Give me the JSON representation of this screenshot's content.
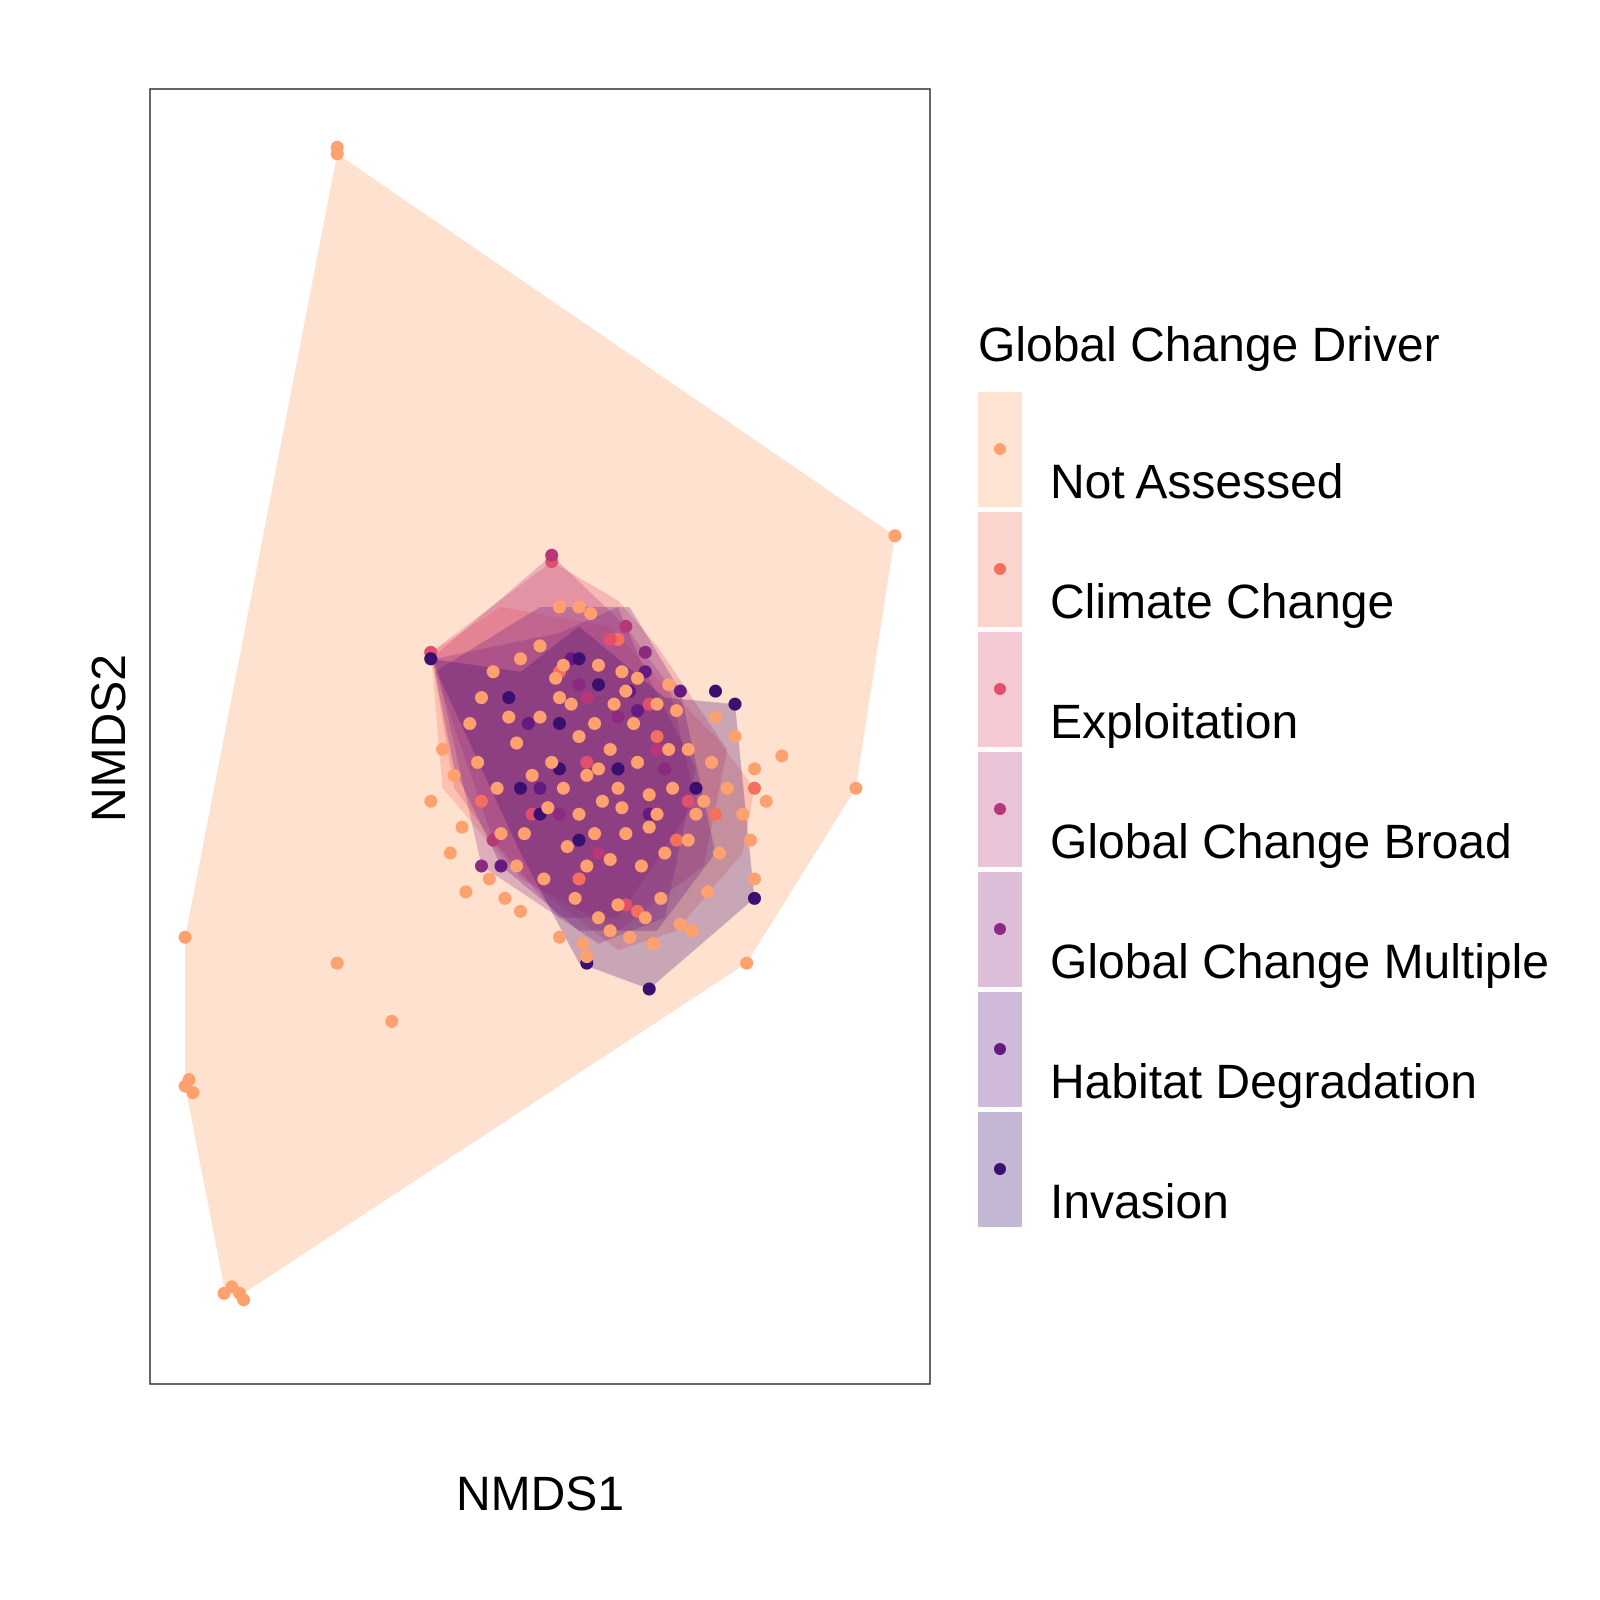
{
  "chart_data": {
    "type": "scatter",
    "title": "",
    "xlabel": "NMDS1",
    "ylabel": "NMDS2",
    "xlim": [
      -1.0,
      1.0
    ],
    "ylim": [
      -1.0,
      1.0
    ],
    "grid": false,
    "legend": {
      "title": "Global Change Driver",
      "position": "right"
    },
    "series": [
      {
        "name": "Not Assessed",
        "color": "#FEA16E",
        "hull": [
          [
            -0.52,
            0.9
          ],
          [
            0.91,
            0.31
          ],
          [
            0.81,
            -0.08
          ],
          [
            0.53,
            -0.35
          ],
          [
            -0.76,
            -0.86
          ],
          [
            -0.81,
            -0.85
          ],
          [
            -0.91,
            -0.54
          ],
          [
            -0.91,
            -0.31
          ]
        ],
        "points": [
          [
            -0.52,
            0.9
          ],
          [
            -0.52,
            0.91
          ],
          [
            0.91,
            0.31
          ],
          [
            0.81,
            -0.08
          ],
          [
            0.53,
            -0.35
          ],
          [
            -0.91,
            -0.31
          ],
          [
            -0.9,
            -0.53
          ],
          [
            -0.91,
            -0.54
          ],
          [
            -0.89,
            -0.55
          ],
          [
            -0.79,
            -0.85
          ],
          [
            -0.81,
            -0.86
          ],
          [
            -0.77,
            -0.86
          ],
          [
            -0.76,
            -0.87
          ],
          [
            -0.52,
            -0.35
          ],
          [
            -0.38,
            -0.44
          ],
          [
            0.1,
            0.2
          ],
          [
            0.13,
            0.19
          ],
          [
            0.05,
            0.2
          ],
          [
            0.15,
            0.11
          ],
          [
            0.25,
            0.09
          ],
          [
            0.22,
            0.07
          ],
          [
            0.3,
            0.05
          ],
          [
            0.33,
            -0.02
          ],
          [
            0.4,
            -0.12
          ],
          [
            0.48,
            -0.08
          ],
          [
            0.52,
            -0.12
          ],
          [
            0.54,
            -0.16
          ],
          [
            0.55,
            -0.22
          ],
          [
            0.58,
            -0.1
          ],
          [
            0.55,
            -0.05
          ],
          [
            0.62,
            -0.03
          ],
          [
            0.5,
            0.0
          ],
          [
            0.45,
            0.03
          ],
          [
            0.35,
            0.04
          ],
          [
            0.32,
            -0.18
          ],
          [
            0.18,
            -0.3
          ],
          [
            0.2,
            -0.26
          ],
          [
            0.12,
            -0.34
          ],
          [
            0.05,
            -0.31
          ],
          [
            -0.05,
            -0.27
          ],
          [
            -0.13,
            -0.22
          ],
          [
            -0.1,
            -0.15
          ],
          [
            -0.2,
            -0.14
          ],
          [
            -0.22,
            -0.06
          ],
          [
            -0.25,
            -0.02
          ],
          [
            -0.18,
            0.02
          ],
          [
            -0.15,
            0.06
          ],
          [
            -0.05,
            0.12
          ],
          [
            0.0,
            0.14
          ],
          [
            0.05,
            0.06
          ],
          [
            0.1,
            0.0
          ],
          [
            0.15,
            -0.05
          ],
          [
            0.2,
            -0.08
          ],
          [
            0.25,
            -0.04
          ],
          [
            0.28,
            -0.09
          ],
          [
            0.3,
            -0.12
          ],
          [
            0.22,
            -0.15
          ],
          [
            0.18,
            -0.19
          ],
          [
            0.12,
            -0.2
          ],
          [
            0.07,
            -0.17
          ],
          [
            0.02,
            -0.11
          ],
          [
            -0.02,
            -0.06
          ],
          [
            -0.06,
            -0.01
          ],
          [
            0.0,
            0.03
          ],
          [
            0.08,
            0.05
          ],
          [
            0.14,
            0.02
          ],
          [
            0.16,
            -0.1
          ],
          [
            0.1,
            -0.12
          ],
          [
            0.06,
            -0.08
          ],
          [
            0.12,
            -0.06
          ],
          [
            0.18,
            -0.02
          ],
          [
            0.24,
            0.02
          ],
          [
            0.28,
            -0.14
          ],
          [
            0.34,
            -0.08
          ],
          [
            0.38,
            -0.02
          ],
          [
            0.42,
            -0.1
          ],
          [
            0.38,
            -0.16
          ],
          [
            0.31,
            -0.25
          ],
          [
            0.27,
            -0.28
          ],
          [
            0.23,
            -0.31
          ],
          [
            0.15,
            -0.28
          ],
          [
            0.01,
            -0.22
          ],
          [
            -0.06,
            -0.2
          ],
          [
            -0.11,
            -0.08
          ],
          [
            -0.28,
            -0.1
          ],
          [
            -0.23,
            -0.18
          ],
          [
            -0.12,
            0.1
          ],
          [
            0.04,
            0.09
          ],
          [
            0.19,
            0.05
          ],
          [
            -0.04,
            -0.15
          ],
          [
            0.09,
            -0.25
          ],
          [
            0.36,
            -0.29
          ],
          [
            0.44,
            -0.04
          ],
          [
            0.46,
            -0.18
          ],
          [
            0.43,
            -0.24
          ],
          [
            0.14,
            -0.15
          ],
          [
            0.21,
            -0.11
          ],
          [
            0.26,
            -0.2
          ],
          [
            0.03,
            -0.04
          ],
          [
            -0.08,
            0.03
          ],
          [
            -0.16,
            -0.04
          ],
          [
            -0.19,
            -0.24
          ],
          [
            -0.09,
            -0.25
          ],
          [
            0.21,
            0.1
          ],
          [
            0.33,
            0.08
          ],
          [
            0.06,
            0.11
          ],
          [
            0.11,
            -0.32
          ],
          [
            0.29,
            -0.32
          ],
          [
            0.39,
            -0.3
          ]
        ]
      },
      {
        "name": "Climate Change",
        "color": "#F46F5E",
        "hull": [
          [
            -0.28,
            0.13
          ],
          [
            -0.1,
            0.2
          ],
          [
            0.18,
            0.17
          ],
          [
            0.3,
            0.09
          ],
          [
            0.45,
            0.0
          ],
          [
            0.55,
            -0.08
          ],
          [
            0.52,
            -0.18
          ],
          [
            0.35,
            -0.3
          ],
          [
            0.2,
            -0.33
          ],
          [
            -0.08,
            -0.2
          ],
          [
            -0.25,
            -0.08
          ]
        ],
        "points": [
          [
            -0.28,
            0.13
          ],
          [
            0.55,
            -0.08
          ],
          [
            0.2,
            0.15
          ],
          [
            0.05,
            0.1
          ],
          [
            0.3,
            0.0
          ],
          [
            0.35,
            -0.16
          ],
          [
            0.1,
            -0.22
          ],
          [
            -0.15,
            -0.1
          ],
          [
            0.25,
            -0.27
          ],
          [
            0.45,
            -0.12
          ]
        ]
      },
      {
        "name": "Exploitation",
        "color": "#E04F6B",
        "hull": [
          [
            -0.28,
            0.13
          ],
          [
            0.03,
            0.27
          ],
          [
            0.2,
            0.21
          ],
          [
            0.3,
            0.14
          ],
          [
            0.48,
            -0.02
          ],
          [
            0.42,
            -0.2
          ],
          [
            0.2,
            -0.3
          ],
          [
            -0.05,
            -0.22
          ],
          [
            -0.22,
            -0.08
          ]
        ],
        "points": [
          [
            -0.28,
            0.13
          ],
          [
            0.03,
            0.27
          ],
          [
            0.18,
            0.15
          ],
          [
            0.28,
            0.05
          ],
          [
            0.12,
            -0.04
          ],
          [
            -0.02,
            -0.12
          ],
          [
            0.38,
            -0.1
          ],
          [
            0.22,
            -0.26
          ]
        ]
      },
      {
        "name": "Global Change Broad",
        "color": "#B73779",
        "hull": [
          [
            -0.28,
            0.12
          ],
          [
            0.03,
            0.28
          ],
          [
            0.22,
            0.17
          ],
          [
            0.33,
            0.08
          ],
          [
            0.4,
            -0.1
          ],
          [
            0.2,
            -0.28
          ],
          [
            0.05,
            -0.28
          ],
          [
            -0.12,
            -0.16
          ]
        ],
        "points": [
          [
            0.03,
            0.28
          ],
          [
            -0.28,
            0.12
          ],
          [
            0.22,
            0.17
          ],
          [
            0.12,
            0.06
          ],
          [
            0.3,
            -0.02
          ],
          [
            -0.12,
            -0.16
          ],
          [
            0.15,
            -0.18
          ]
        ]
      },
      {
        "name": "Global Change Multiple",
        "color": "#8C2981",
        "hull": [
          [
            -0.27,
            0.12
          ],
          [
            0.05,
            0.16
          ],
          [
            0.2,
            0.2
          ],
          [
            0.27,
            0.1
          ],
          [
            0.4,
            -0.05
          ],
          [
            0.32,
            -0.28
          ],
          [
            0.15,
            -0.32
          ],
          [
            -0.15,
            -0.2
          ]
        ],
        "points": [
          [
            -0.15,
            -0.2
          ],
          [
            0.27,
            0.13
          ],
          [
            0.1,
            0.08
          ],
          [
            0.2,
            0.03
          ],
          [
            0.32,
            -0.05
          ],
          [
            0.05,
            -0.12
          ],
          [
            0.15,
            -0.28
          ]
        ]
      },
      {
        "name": "Habitat Degradation",
        "color": "#641A80",
        "hull": [
          [
            -0.27,
            0.1
          ],
          [
            0.0,
            0.2
          ],
          [
            0.23,
            0.2
          ],
          [
            0.36,
            0.07
          ],
          [
            0.45,
            -0.18
          ],
          [
            0.3,
            -0.3
          ],
          [
            0.1,
            -0.3
          ],
          [
            -0.1,
            -0.2
          ],
          [
            -0.22,
            -0.05
          ]
        ],
        "points": [
          [
            -0.1,
            -0.2
          ],
          [
            0.36,
            0.07
          ],
          [
            0.27,
            0.1
          ],
          [
            0.25,
            0.04
          ],
          [
            0.23,
            0.07
          ],
          [
            0.0,
            -0.08
          ],
          [
            -0.03,
            0.02
          ],
          [
            0.08,
            0.12
          ],
          [
            0.28,
            -0.12
          ],
          [
            0.2,
            -0.05
          ]
        ]
      },
      {
        "name": "Invasion",
        "color": "#3B0F70",
        "hull": [
          [
            -0.28,
            0.12
          ],
          [
            -0.05,
            0.1
          ],
          [
            0.1,
            0.17
          ],
          [
            0.32,
            0.06
          ],
          [
            0.5,
            0.05
          ],
          [
            0.55,
            -0.25
          ],
          [
            0.28,
            -0.39
          ],
          [
            0.1,
            -0.35
          ],
          [
            -0.05,
            -0.18
          ]
        ],
        "points": [
          [
            -0.28,
            0.12
          ],
          [
            0.5,
            0.05
          ],
          [
            0.55,
            -0.25
          ],
          [
            0.28,
            -0.39
          ],
          [
            0.1,
            0.12
          ],
          [
            0.05,
            0.02
          ],
          [
            0.15,
            0.08
          ],
          [
            -0.05,
            -0.08
          ],
          [
            0.0,
            -0.12
          ],
          [
            0.1,
            -0.16
          ],
          [
            0.2,
            -0.05
          ],
          [
            0.05,
            -0.05
          ],
          [
            0.45,
            0.07
          ],
          [
            0.4,
            -0.08
          ],
          [
            0.12,
            -0.35
          ],
          [
            -0.08,
            0.06
          ]
        ]
      }
    ]
  }
}
